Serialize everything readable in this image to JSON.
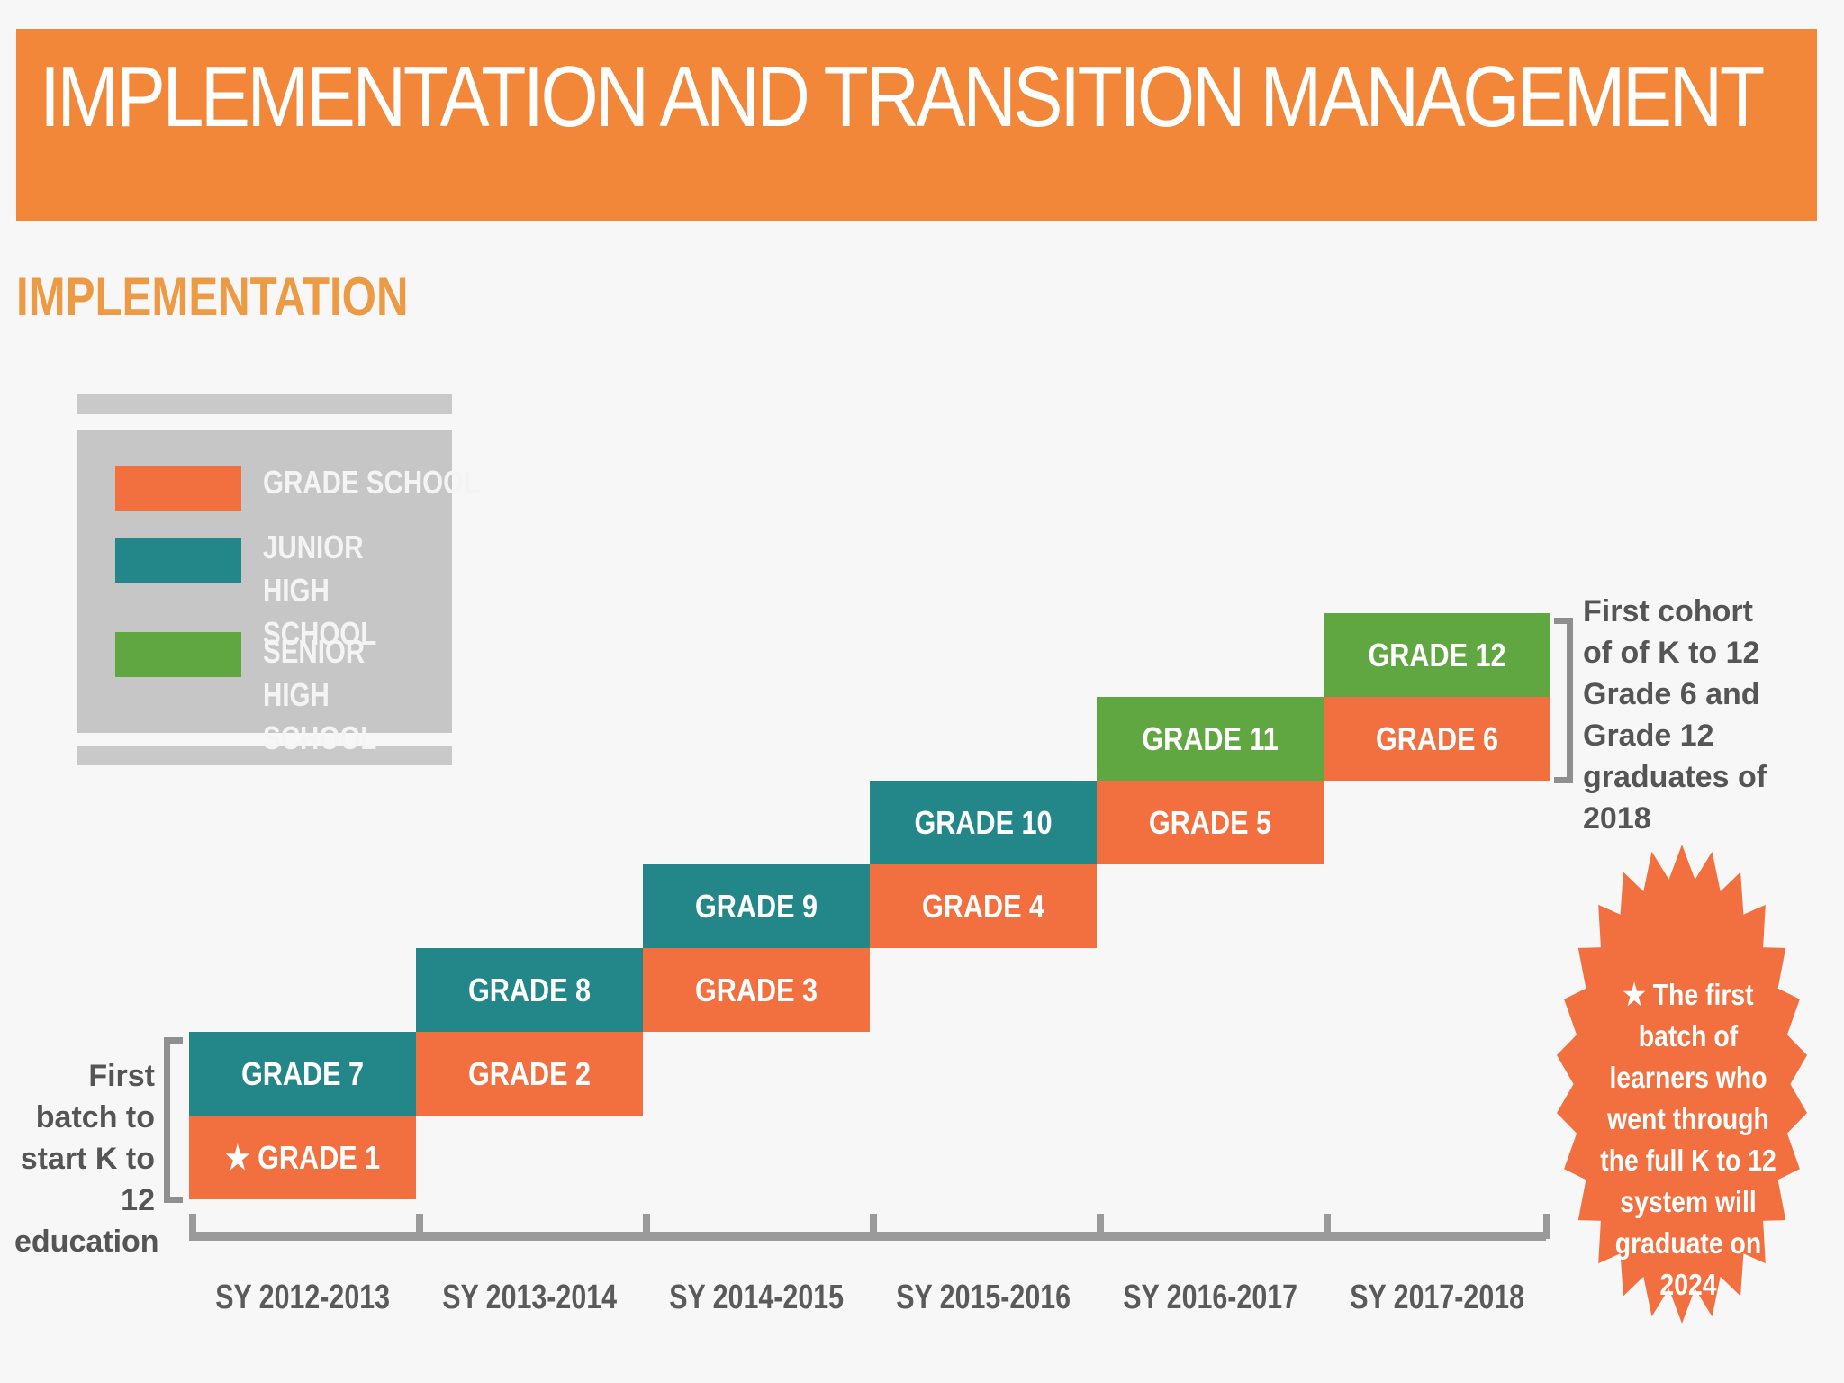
{
  "header": {
    "title": "IMPLEMENTATION AND TRANSITION MANAGEMENT"
  },
  "section": {
    "title": "IMPLEMENTATION"
  },
  "colors": {
    "grade_school": "#f26f3f",
    "junior_high": "#23878a",
    "senior_high": "#60a741",
    "banner": "#f2873a"
  },
  "legend": {
    "grade_school": "GRADE SCHOOL",
    "junior_high": "JUNIOR HIGH SCHOOL",
    "senior_high": "SENIOR HIGH SCHOOL"
  },
  "school_years": [
    "SY 2012-2013",
    "SY 2013-2014",
    "SY 2014-2015",
    "SY 2015-2016",
    "SY 2016-2017",
    "SY 2017-2018"
  ],
  "steps": [
    {
      "upper": {
        "label": "GRADE 7",
        "level": "junior_high"
      },
      "lower": {
        "label": "GRADE 1",
        "level": "grade_school",
        "star": true
      }
    },
    {
      "upper": {
        "label": "GRADE 8",
        "level": "junior_high"
      },
      "lower": {
        "label": "GRADE 2",
        "level": "grade_school"
      }
    },
    {
      "upper": {
        "label": "GRADE 9",
        "level": "junior_high"
      },
      "lower": {
        "label": "GRADE 3",
        "level": "grade_school"
      }
    },
    {
      "upper": {
        "label": "GRADE 10",
        "level": "junior_high"
      },
      "lower": {
        "label": "GRADE 4",
        "level": "grade_school"
      }
    },
    {
      "upper": {
        "label": "GRADE 11",
        "level": "senior_high"
      },
      "lower": {
        "label": "GRADE 5",
        "level": "grade_school"
      }
    },
    {
      "upper": {
        "label": "GRADE 12",
        "level": "senior_high"
      },
      "lower": {
        "label": "GRADE 6",
        "level": "grade_school"
      }
    }
  ],
  "star_symbol": "★",
  "notes": {
    "first_batch": "First batch to start K to 12 education",
    "first_cohort": "First cohort of of K to 12 Grade 6 and Grade 12 graduates of 2018",
    "burst": "★ The first batch of learners who went through the full K to 12 system will graduate on 2024"
  }
}
